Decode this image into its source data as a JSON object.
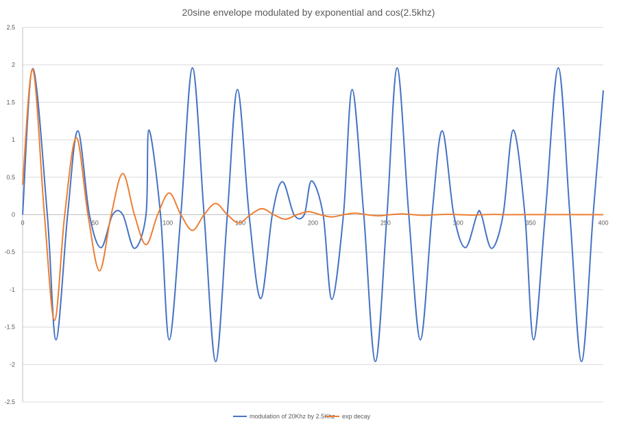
{
  "chart_data": {
    "type": "line",
    "title": "20sine envelope modulated by exponential and cos(2.5khz)",
    "xlabel": "",
    "ylabel": "",
    "xlim": [
      0,
      400
    ],
    "ylim": [
      -2.5,
      2.5
    ],
    "x_ticks": [
      0,
      50,
      100,
      150,
      200,
      250,
      300,
      350,
      400
    ],
    "y_ticks": [
      2.5,
      2,
      1.5,
      1,
      0.5,
      0,
      -0.5,
      -1,
      -1.5,
      -2,
      -2.5
    ],
    "x_tick_labels": [
      "0",
      "50",
      "100",
      "150",
      "200",
      "250",
      "300",
      "350",
      "400"
    ],
    "y_tick_labels": [
      "2.5",
      "2",
      "1.5",
      "1",
      "0.5",
      "0",
      "-0.5",
      "-1",
      "-1.5",
      "-2",
      "-2.5"
    ],
    "grid": "horizontal",
    "legend_position": "bottom",
    "series": [
      {
        "name": "modulation of 20Khz by 2.5Khz",
        "color": "#4472c4",
        "points": [
          [
            0,
            0
          ],
          [
            7,
            1.95
          ],
          [
            17,
            0
          ],
          [
            23,
            -1.67
          ],
          [
            31,
            0
          ],
          [
            38,
            1.12
          ],
          [
            46,
            0
          ],
          [
            54,
            -0.44
          ],
          [
            62,
            0
          ],
          [
            69,
            0
          ],
          [
            77,
            -0.45
          ],
          [
            85,
            0
          ],
          [
            87,
            1.13
          ],
          [
            95,
            0
          ],
          [
            101,
            -1.67
          ],
          [
            109,
            0
          ],
          [
            117,
            1.96
          ],
          [
            125,
            0
          ],
          [
            133,
            -1.96
          ],
          [
            141,
            0
          ],
          [
            148,
            1.67
          ],
          [
            156,
            0
          ],
          [
            164,
            -1.12
          ],
          [
            172,
            0
          ],
          [
            179,
            0.44
          ],
          [
            187,
            0
          ],
          [
            194,
            0
          ],
          [
            199,
            0.45
          ],
          [
            207,
            0
          ],
          [
            213,
            -1.13
          ],
          [
            221,
            0
          ],
          [
            227,
            1.67
          ],
          [
            235,
            0
          ],
          [
            243,
            -1.96
          ],
          [
            251,
            0
          ],
          [
            258,
            1.96
          ],
          [
            266,
            0
          ],
          [
            274,
            -1.67
          ],
          [
            282,
            0
          ],
          [
            289,
            1.12
          ],
          [
            297,
            0
          ],
          [
            305,
            -0.44
          ],
          [
            313,
            0
          ],
          [
            316,
            0
          ],
          [
            323,
            -0.45
          ],
          [
            331,
            0
          ],
          [
            338,
            1.13
          ],
          [
            346,
            0
          ],
          [
            352,
            -1.67
          ],
          [
            360,
            0
          ],
          [
            369,
            1.96
          ],
          [
            377,
            0
          ],
          [
            385,
            -1.96
          ],
          [
            393,
            0
          ],
          [
            400,
            1.66
          ]
        ]
      },
      {
        "name": "exp decay",
        "color": "#ed7d31",
        "points": [
          [
            0,
            0.4
          ],
          [
            7,
            1.94
          ],
          [
            15,
            0
          ],
          [
            22,
            -1.41
          ],
          [
            29,
            0
          ],
          [
            37,
            1.03
          ],
          [
            45,
            0
          ],
          [
            53,
            -0.75
          ],
          [
            61,
            0
          ],
          [
            69,
            0.55
          ],
          [
            77,
            0
          ],
          [
            85,
            -0.4
          ],
          [
            93,
            0
          ],
          [
            101,
            0.29
          ],
          [
            109,
            0
          ],
          [
            117,
            -0.21
          ],
          [
            125,
            0
          ],
          [
            133,
            0.15
          ],
          [
            141,
            0
          ],
          [
            149,
            -0.11
          ],
          [
            157,
            0
          ],
          [
            165,
            0.08
          ],
          [
            173,
            0
          ],
          [
            181,
            -0.06
          ],
          [
            189,
            0
          ],
          [
            197,
            0.04
          ],
          [
            205,
            0
          ],
          [
            213,
            -0.03
          ],
          [
            221,
            0
          ],
          [
            229,
            0.02
          ],
          [
            237,
            0
          ],
          [
            245,
            -0.015
          ],
          [
            253,
            0
          ],
          [
            261,
            0.01
          ],
          [
            269,
            0
          ],
          [
            277,
            -0.008
          ],
          [
            285,
            0
          ],
          [
            293,
            0.005
          ],
          [
            301,
            0
          ],
          [
            309,
            -0.004
          ],
          [
            317,
            0
          ],
          [
            325,
            0.003
          ],
          [
            333,
            0
          ],
          [
            350,
            0.001
          ],
          [
            400,
            0
          ]
        ]
      }
    ]
  }
}
